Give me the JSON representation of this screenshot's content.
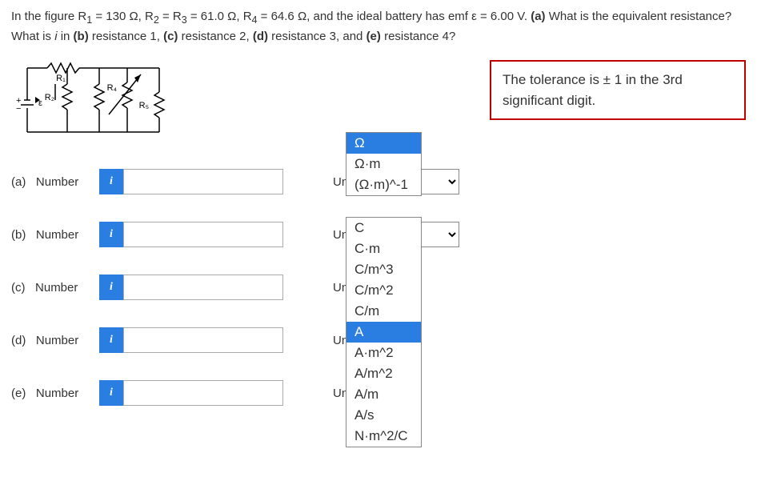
{
  "question": {
    "line1_prefix": "In the figure R",
    "r1_sub": "1",
    "eq": " = 130 Ω, R",
    "r2_sub": "2",
    "eq2": " = R",
    "r3_sub": "3",
    "eq3": " = 61.0 Ω, R",
    "r4_sub": "4",
    "eq4": " = 64.6 Ω, and the ideal battery has emf ε = 6.00 V. ",
    "part_a_bold": "(a)",
    "part_a_text": " What is the equivalent resistance?",
    "line2_prefix": "What is ",
    "i_var": "i",
    "line2_mid": " in ",
    "pb": "(b)",
    "pb_text": " resistance 1, ",
    "pc": "(c)",
    "pc_text": " resistance 2, ",
    "pd": "(d)",
    "pd_text": " resistance 3, and ",
    "pe": "(e)",
    "pe_text": " resistance 4?"
  },
  "tolerance_text": "The tolerance is ± 1 in the 3rd significant digit.",
  "circuit_labels": {
    "r1": "R₁",
    "r2": "R₂",
    "r3": "R₃",
    "r4": "R₄",
    "emf": "ε"
  },
  "rows": [
    {
      "part": "(a)",
      "label": "Number",
      "info_glyph": "i",
      "units_label": "Units"
    },
    {
      "part": "(b)",
      "label": "Number",
      "info_glyph": "i",
      "units_label": "Units"
    },
    {
      "part": "(c)",
      "label": "Number",
      "info_glyph": "i",
      "units_label": "Units"
    },
    {
      "part": "(d)",
      "label": "Number",
      "info_glyph": "i",
      "units_label": "Units"
    },
    {
      "part": "(e)",
      "label": "Number",
      "info_glyph": "i",
      "units_label": "Units"
    }
  ],
  "dropdown_a": {
    "items": [
      "Ω",
      "Ω·m",
      "(Ω·m)^-1"
    ],
    "selected_index": 0
  },
  "dropdown_b": {
    "items": [
      "C",
      "C·m",
      "C/m^3",
      "C/m^2",
      "C/m",
      "A",
      "A·m^2",
      "A/m^2",
      "A/m",
      "A/s",
      "N·m^2/C"
    ],
    "selected_index": 5
  },
  "colors": {
    "info_bg": "#2a7de1",
    "tolerance_border": "#c00000",
    "text": "#333333"
  }
}
